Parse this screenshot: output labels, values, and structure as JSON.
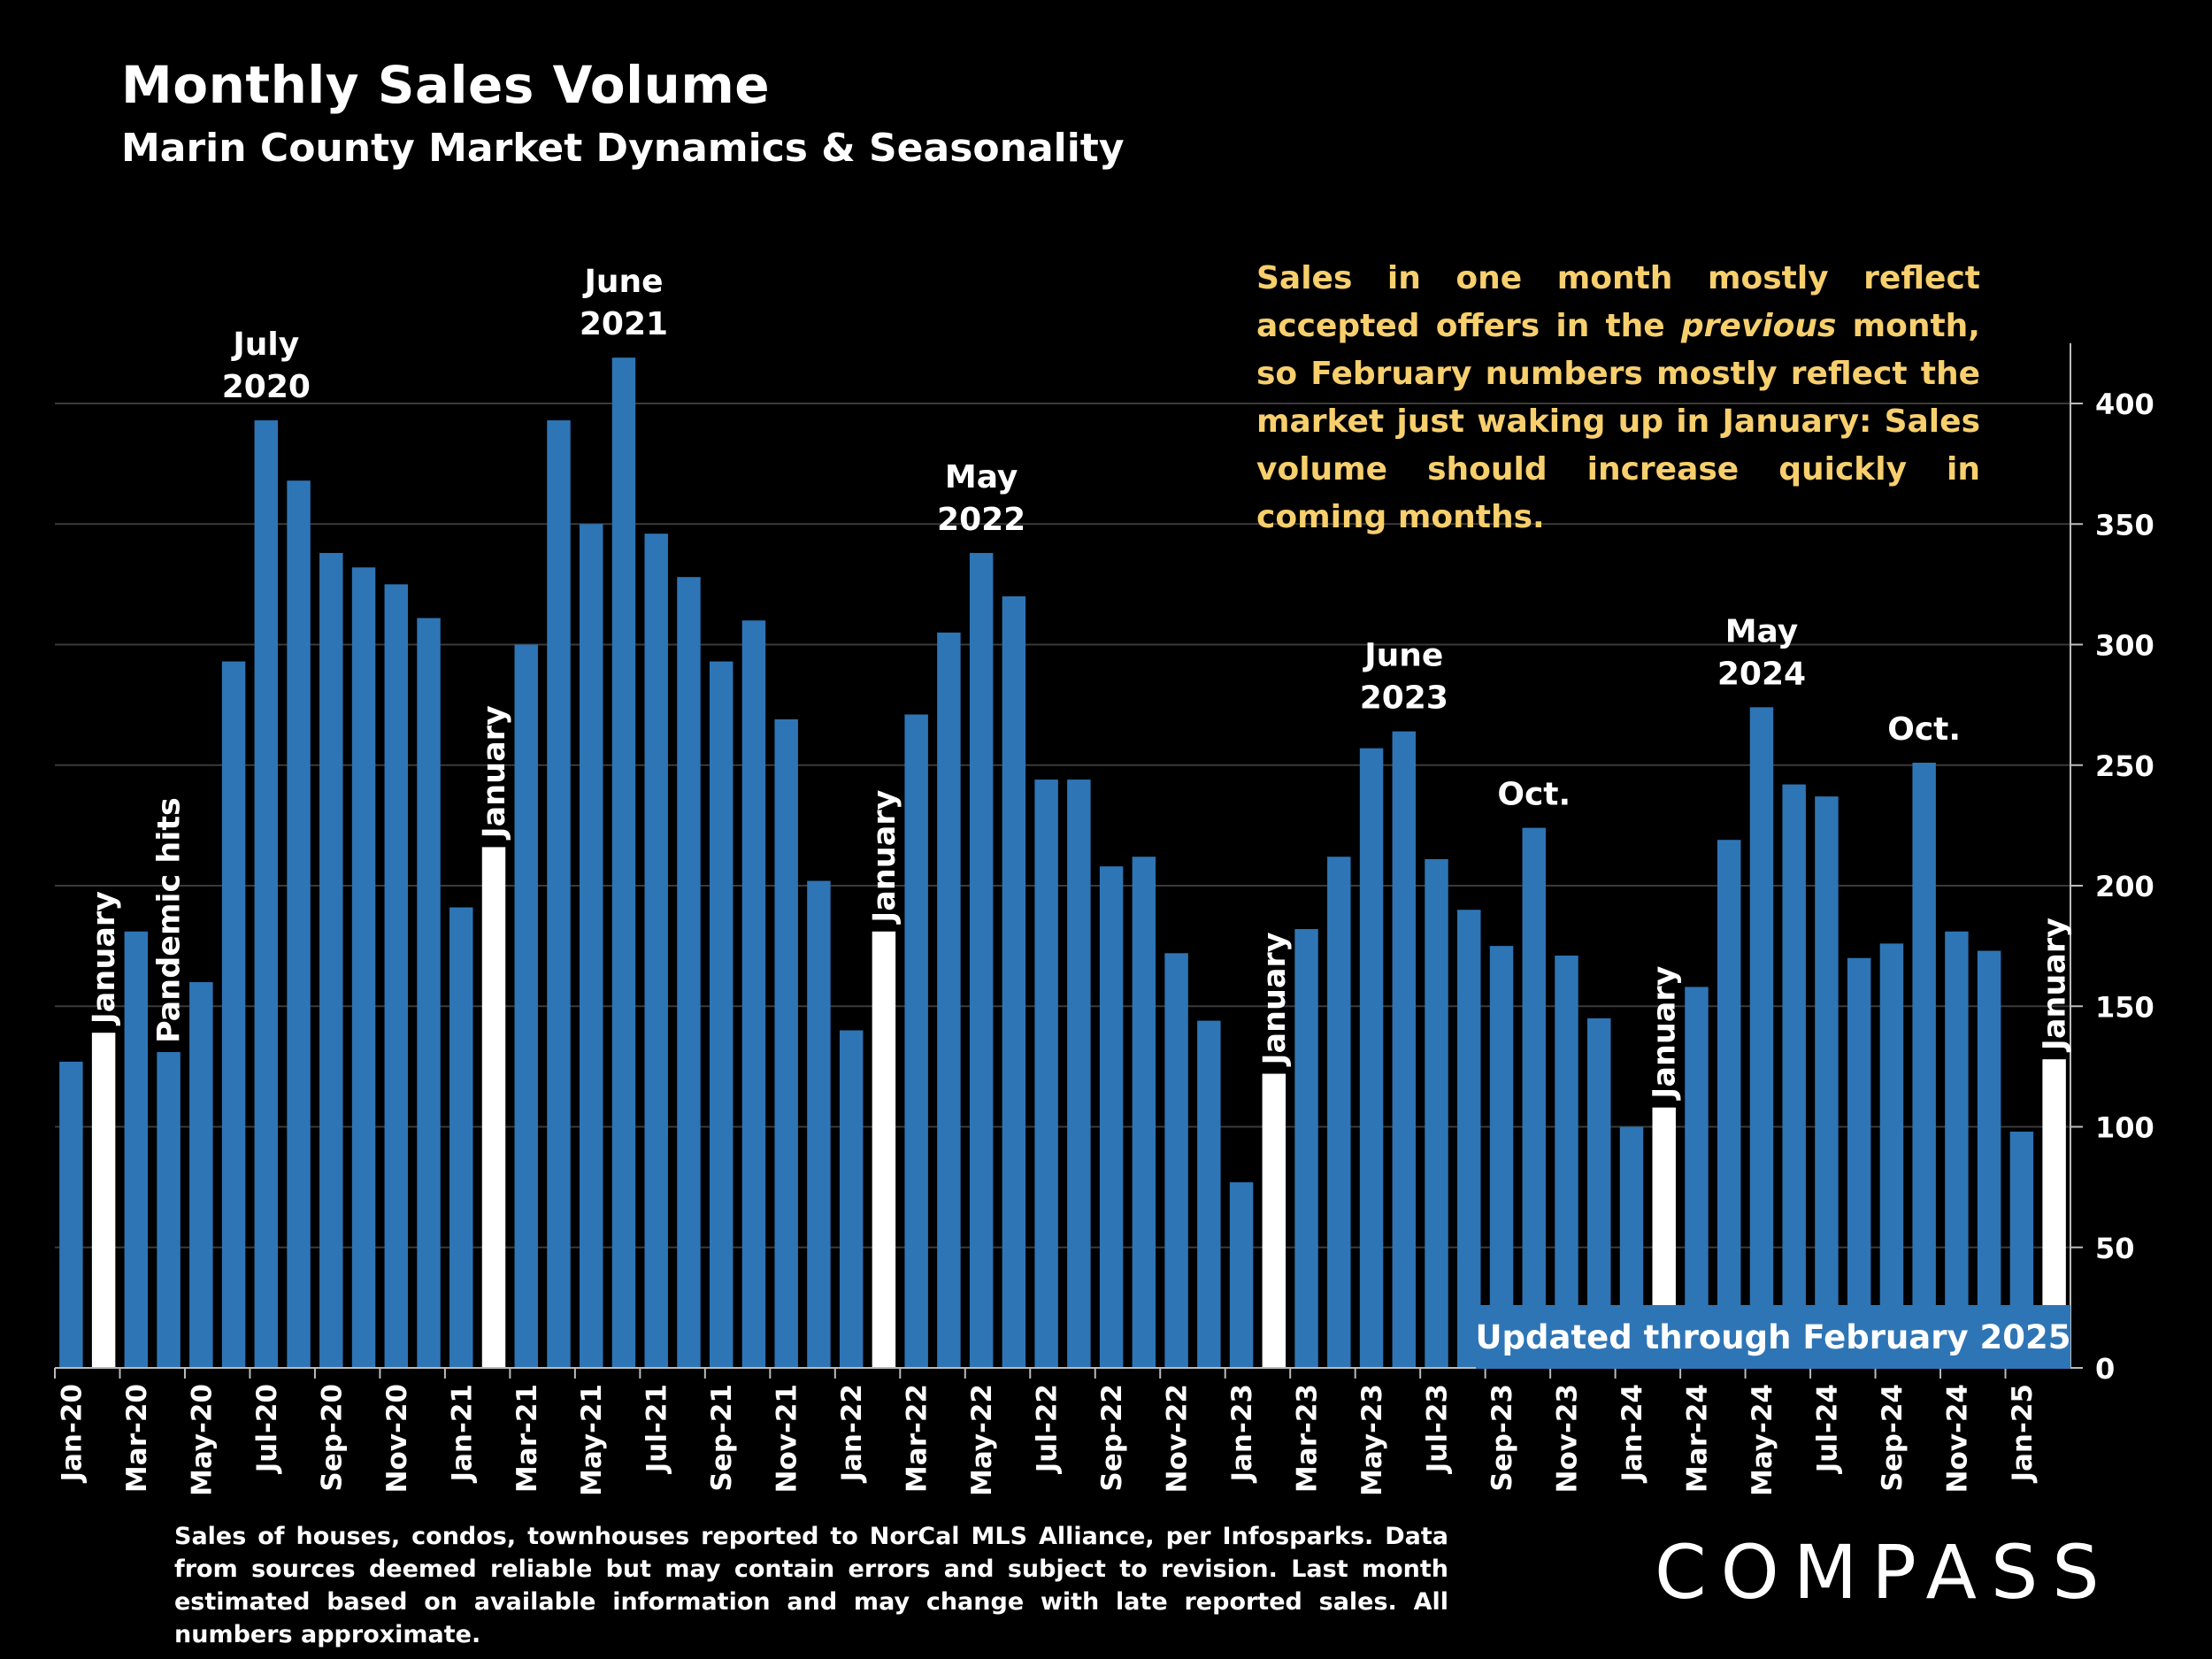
{
  "header": {
    "title": "Monthly Sales Volume",
    "subtitle": "Marin County Market Dynamics & Seasonality"
  },
  "note": {
    "part1": "Sales in one month mostly reflect accepted offers in the",
    "emphasis": "previous",
    "part2": "month, so February numbers mostly reflect the market just waking up in January:  Sales volume should increase quickly in coming months."
  },
  "updated_label": "Updated through February 2025",
  "footnote": "Sales of houses, condos, townhouses reported to NorCal MLS Alliance, per Infosparks. Data from sources deemed reliable but may contain errors and subject to revision. Last month estimated based on available information and may change with late reported sales. All numbers approximate.",
  "logo": "COMPASS",
  "colors": {
    "bar": "#2e75b6",
    "january_bar": "#ffffff",
    "note_text": "#f7cf6d",
    "background": "#000000",
    "gridline": "#3a3a3a"
  },
  "chart_data": {
    "type": "bar",
    "title": "Monthly Sales Volume",
    "xlabel": "",
    "ylabel": "",
    "ylim": [
      0,
      425
    ],
    "yticks": [
      0,
      50,
      100,
      150,
      200,
      250,
      300,
      350,
      400
    ],
    "y_axis_side": "right",
    "grid": true,
    "categories": [
      "Jan-20",
      "Feb-20",
      "Mar-20",
      "Apr-20",
      "May-20",
      "Jun-20",
      "Jul-20",
      "Aug-20",
      "Sep-20",
      "Oct-20",
      "Nov-20",
      "Dec-20",
      "Jan-21",
      "Feb-21",
      "Mar-21",
      "Apr-21",
      "May-21",
      "Jun-21",
      "Jul-21",
      "Aug-21",
      "Sep-21",
      "Oct-21",
      "Nov-21",
      "Dec-21",
      "Jan-22",
      "Feb-22",
      "Mar-22",
      "Apr-22",
      "May-22",
      "Jun-22",
      "Jul-22",
      "Aug-22",
      "Sep-22",
      "Oct-22",
      "Nov-22",
      "Dec-22",
      "Jan-23",
      "Feb-23",
      "Mar-23",
      "Apr-23",
      "May-23",
      "Jun-23",
      "Jul-23",
      "Aug-23",
      "Sep-23",
      "Oct-23",
      "Nov-23",
      "Dec-23",
      "Jan-24",
      "Feb-24",
      "Mar-24",
      "Apr-24",
      "May-24",
      "Jun-24",
      "Jul-24",
      "Aug-24",
      "Sep-24",
      "Oct-24",
      "Nov-24",
      "Dec-24",
      "Jan-25",
      "Feb-25"
    ],
    "x_tick_labels": [
      "Jan-20",
      "Mar-20",
      "May-20",
      "Jul-20",
      "Sep-20",
      "Nov-20",
      "Jan-21",
      "Mar-21",
      "May-21",
      "Jul-21",
      "Sep-21",
      "Nov-21",
      "Jan-22",
      "Mar-22",
      "May-22",
      "Jul-22",
      "Sep-22",
      "Nov-22",
      "Jan-23",
      "Mar-23",
      "May-23",
      "Jul-23",
      "Sep-23",
      "Nov-23",
      "Jan-24",
      "Mar-24",
      "May-24",
      "Jul-24",
      "Sep-24",
      "Nov-24",
      "Jan-25"
    ],
    "values": [
      127,
      139,
      181,
      131,
      160,
      293,
      393,
      368,
      338,
      332,
      325,
      311,
      191,
      216,
      300,
      393,
      350,
      419,
      346,
      328,
      293,
      310,
      269,
      202,
      140,
      181,
      271,
      305,
      338,
      320,
      244,
      244,
      208,
      212,
      172,
      144,
      77,
      122,
      182,
      212,
      257,
      264,
      211,
      190,
      175,
      224,
      171,
      145,
      100,
      108,
      158,
      219,
      274,
      242,
      237,
      170,
      176,
      251,
      181,
      173,
      98,
      128
    ],
    "highlighted_indices": [
      1,
      13,
      25,
      37,
      49,
      61
    ],
    "annotations": [
      {
        "lines": [
          "January"
        ],
        "bar_index": 1,
        "vertical": true
      },
      {
        "lines": [
          "Pandemic hits"
        ],
        "bar_index": 3,
        "vertical": true
      },
      {
        "lines": [
          "July",
          "2020"
        ],
        "bar_index": 6,
        "vertical": false
      },
      {
        "lines": [
          "January"
        ],
        "bar_index": 13,
        "vertical": true
      },
      {
        "lines": [
          "June",
          "2021"
        ],
        "bar_index": 17,
        "vertical": false
      },
      {
        "lines": [
          "January"
        ],
        "bar_index": 25,
        "vertical": true
      },
      {
        "lines": [
          "May",
          "2022"
        ],
        "bar_index": 28,
        "vertical": false
      },
      {
        "lines": [
          "January"
        ],
        "bar_index": 37,
        "vertical": true
      },
      {
        "lines": [
          "June",
          "2023"
        ],
        "bar_index": 41,
        "vertical": false
      },
      {
        "lines": [
          "Oct."
        ],
        "bar_index": 45,
        "vertical": false
      },
      {
        "lines": [
          "January"
        ],
        "bar_index": 49,
        "vertical": true
      },
      {
        "lines": [
          "May",
          "2024"
        ],
        "bar_index": 52,
        "vertical": false
      },
      {
        "lines": [
          "Oct."
        ],
        "bar_index": 57,
        "vertical": false
      },
      {
        "lines": [
          "January"
        ],
        "bar_index": 61,
        "vertical": true
      }
    ]
  }
}
